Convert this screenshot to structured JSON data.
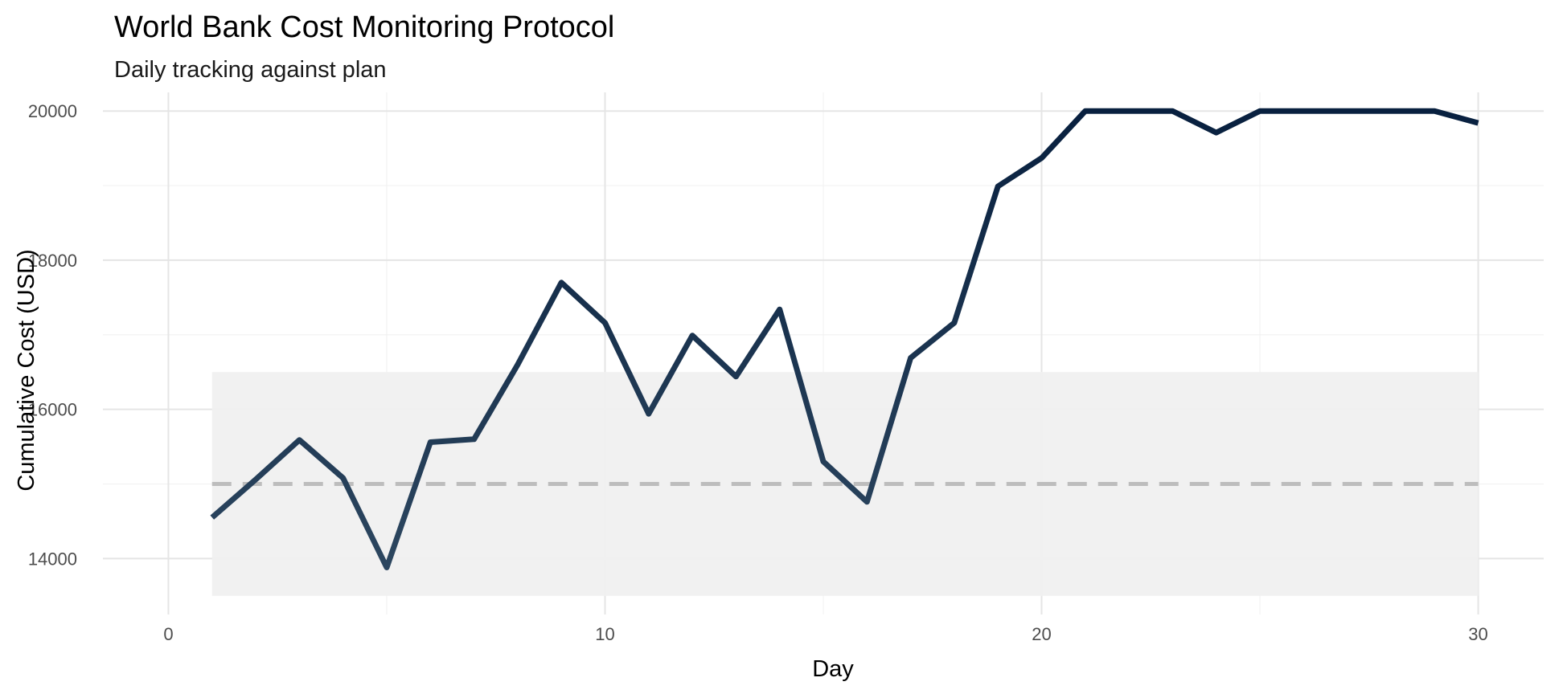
{
  "chart_data": {
    "type": "line",
    "title": "World Bank Cost Monitoring Protocol",
    "subtitle": "Daily tracking against plan",
    "xlabel": "Day",
    "ylabel": "Cumulative Cost (USD)",
    "xlim": [
      -1.5,
      31.5
    ],
    "ylim": [
      13250,
      20250
    ],
    "x_ticks": [
      0,
      10,
      20,
      30
    ],
    "y_ticks": [
      14000,
      16000,
      18000,
      20000
    ],
    "grid": true,
    "legend": "none",
    "plan_line": 15000,
    "tolerance_band": {
      "xmin": 1,
      "xmax": 30,
      "ymin": 13500,
      "ymax": 16500
    },
    "series": [
      {
        "x": [
          1,
          2,
          3,
          4,
          5,
          6,
          7,
          8,
          9,
          10,
          11,
          12,
          13,
          14,
          15,
          16,
          17,
          18,
          19,
          20,
          21,
          22,
          23,
          24,
          25,
          26,
          27,
          28,
          29,
          30
        ],
        "values": [
          14550,
          15060,
          15590,
          15080,
          13880,
          15560,
          15600,
          16600,
          17700,
          17160,
          15940,
          16990,
          16440,
          17340,
          15300,
          14760,
          16690,
          17160,
          18990,
          19370,
          20000,
          20000,
          20000,
          19710,
          20000,
          20000,
          20000,
          20000,
          20000,
          19840
        ]
      }
    ],
    "colors": {
      "line_low": "#2d4760",
      "line_high": "#08203f",
      "band": "#f0f0f0",
      "plan": "#bdbdbd"
    }
  }
}
